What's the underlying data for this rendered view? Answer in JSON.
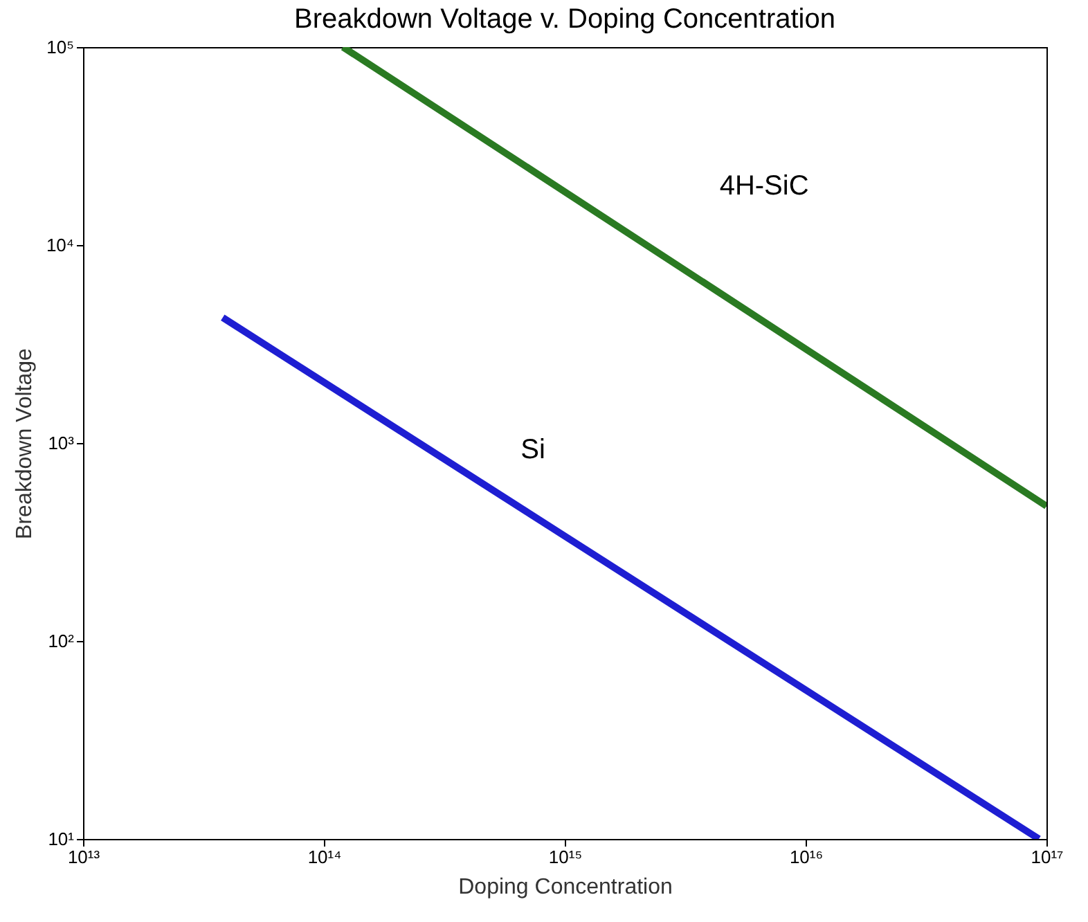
{
  "chart_data": {
    "type": "line",
    "title": "Breakdown Voltage v. Doping Concentration",
    "xlabel": "Doping Concentration",
    "ylabel": "Breakdown Voltage",
    "log": "xy",
    "grid": false,
    "legend": false,
    "marker": "none",
    "line_style": "solid",
    "xlim": [
      10000000000000.0,
      1e+17
    ],
    "ylim": [
      10,
      100000
    ],
    "xticks": [
      {
        "value": 10000000000000.0,
        "label": "10¹³"
      },
      {
        "value": 100000000000000.0,
        "label": "10¹⁴"
      },
      {
        "value": 1000000000000000.0,
        "label": "10¹⁵"
      },
      {
        "value": 1e+16,
        "label": "10¹⁶"
      },
      {
        "value": 1e+17,
        "label": "10¹⁷"
      }
    ],
    "yticks": [
      {
        "value": 10,
        "label": "10¹"
      },
      {
        "value": 100,
        "label": "10²"
      },
      {
        "value": 1000,
        "label": "10³"
      },
      {
        "value": 10000,
        "label": "10⁴"
      },
      {
        "value": 100000,
        "label": "10⁵"
      }
    ],
    "series": [
      {
        "name": "4H-SiC",
        "color": "#2a7a22",
        "x": [
          120000000000000.0,
          1e+17
        ],
        "values": [
          100000,
          480
        ]
      },
      {
        "name": "Si",
        "color": "#1e1ed2",
        "x": [
          38000000000000.0,
          9.3e+16
        ],
        "values": [
          4300,
          10
        ]
      }
    ]
  }
}
